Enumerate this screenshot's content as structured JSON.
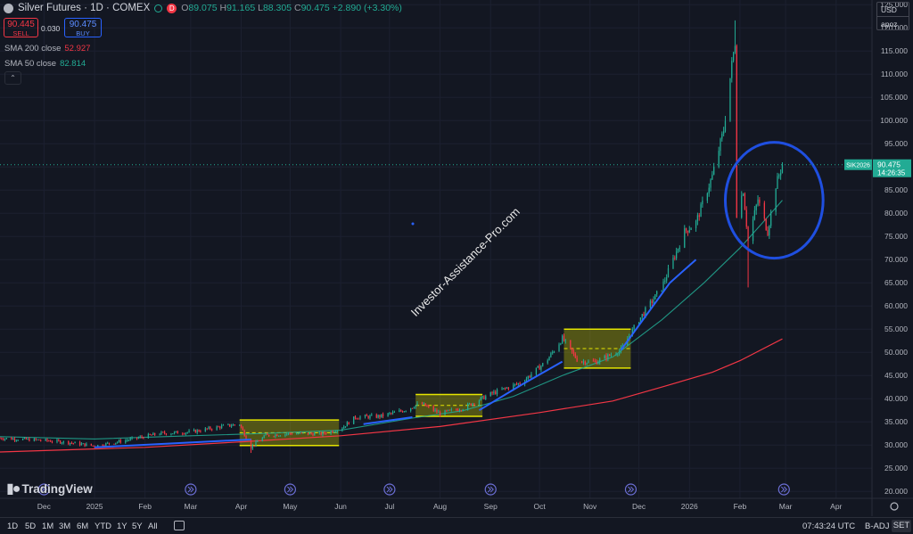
{
  "header": {
    "symbol": "Silver Futures · 1D · COMEX",
    "open_label": "O",
    "open": "89.075",
    "high_label": "H",
    "high": "91.165",
    "low_label": "L",
    "low": "88.305",
    "close_label": "C",
    "close": "90.475",
    "change": "+2.890 (+3.30%)",
    "d_badge": "D"
  },
  "trade": {
    "sell_price": "90.445",
    "sell_label": "SELL",
    "spread": "0.030",
    "buy_price": "90.475",
    "buy_label": "BUY"
  },
  "indicators": [
    {
      "label": "SMA 200 close",
      "value": "52.927",
      "color": "#f23645"
    },
    {
      "label": "SMA 50 close",
      "value": "82.814",
      "color": "#22ab94"
    }
  ],
  "currency": {
    "code": "USD",
    "unit": "apoz"
  },
  "price_label": {
    "ticker": "SIK2026",
    "price": "90.475",
    "countdown": "14:26:35"
  },
  "watermark": "Investor-Assistance-Pro.com",
  "brand": "TradingView",
  "bottom_bar": {
    "ranges": [
      "1D",
      "5D",
      "1M",
      "3M",
      "6M",
      "YTD",
      "1Y",
      "5Y",
      "All"
    ],
    "clock": "07:43:24 UTC",
    "badj": "B-ADJ",
    "session": "SET"
  },
  "colors": {
    "bull": "#22ab94",
    "bear": "#f23645",
    "sma200": "#f23645",
    "sma50": "#22ab94",
    "annotation": "#2962ff",
    "box": "#e5e500",
    "background": "#131722"
  },
  "chart_data": {
    "type": "candlestick",
    "instrument": "Silver Futures",
    "ylim": [
      18.5,
      126
    ],
    "y_ticks": [
      20,
      25,
      30,
      35,
      40,
      45,
      50,
      55,
      60,
      65,
      70,
      75,
      80,
      85,
      90,
      95,
      100,
      105,
      110,
      115,
      120,
      125
    ],
    "y_tick_labels": [
      "20.000",
      "25.000",
      "30.000",
      "35.000",
      "40.000",
      "45.000",
      "50.000",
      "55.000",
      "60.000",
      "65.000",
      "70.000",
      "75.000",
      "80.000",
      "85.000",
      "90.000",
      "95.000",
      "100.000",
      "105.000",
      "110.000",
      "115.000",
      "120.000",
      "125.000"
    ],
    "x_labels": [
      "Dec",
      "2025",
      "Feb",
      "Mar",
      "Apr",
      "May",
      "Jun",
      "Jul",
      "Aug",
      "Sep",
      "Oct",
      "Nov",
      "Dec",
      "2026",
      "Feb",
      "Mar",
      "Apr"
    ],
    "x_label_dates": [
      "2024-12-01",
      "2025-01-01",
      "2025-02-01",
      "2025-03-01",
      "2025-04-01",
      "2025-05-01",
      "2025-06-01",
      "2025-07-01",
      "2025-08-01",
      "2025-09-01",
      "2025-10-01",
      "2025-11-01",
      "2025-12-01",
      "2026-01-01",
      "2026-02-01",
      "2026-03-01",
      "2026-04-01"
    ],
    "x_range": [
      "2024-11-04",
      "2026-04-23"
    ],
    "price_path": [
      [
        "2024-11-04",
        31.5
      ],
      [
        "2024-12-01",
        31.0
      ],
      [
        "2024-12-15",
        30.6
      ],
      [
        "2025-01-01",
        29.8
      ],
      [
        "2025-01-20",
        31.0
      ],
      [
        "2025-02-10",
        32.5
      ],
      [
        "2025-03-01",
        32.8
      ],
      [
        "2025-03-20",
        34.0
      ],
      [
        "2025-03-31",
        34.5
      ],
      [
        "2025-04-07",
        29.5
      ],
      [
        "2025-04-15",
        32.0
      ],
      [
        "2025-05-01",
        32.5
      ],
      [
        "2025-05-20",
        32.4
      ],
      [
        "2025-06-01",
        33.5
      ],
      [
        "2025-06-10",
        36.0
      ],
      [
        "2025-06-25",
        36.2
      ],
      [
        "2025-07-10",
        37.5
      ],
      [
        "2025-07-20",
        39.0
      ],
      [
        "2025-08-01",
        36.8
      ],
      [
        "2025-08-15",
        38.0
      ],
      [
        "2025-09-01",
        41.0
      ],
      [
        "2025-09-20",
        43.5
      ],
      [
        "2025-10-05",
        48.0
      ],
      [
        "2025-10-15",
        53.0
      ],
      [
        "2025-10-25",
        48.0
      ],
      [
        "2025-11-05",
        48.0
      ],
      [
        "2025-11-20",
        50.5
      ],
      [
        "2025-12-01",
        57.0
      ],
      [
        "2025-12-15",
        64.0
      ],
      [
        "2025-12-29",
        76.0
      ],
      [
        "2026-01-05",
        78.0
      ],
      [
        "2026-01-15",
        88.0
      ],
      [
        "2026-01-22",
        98.0
      ],
      [
        "2026-01-27",
        112.0
      ],
      [
        "2026-01-29",
        117.0
      ],
      [
        "2026-01-30",
        80.0
      ],
      [
        "2026-02-03",
        85.0
      ],
      [
        "2026-02-06",
        74.0
      ],
      [
        "2026-02-12",
        83.0
      ],
      [
        "2026-02-18",
        76.0
      ],
      [
        "2026-02-23",
        86.0
      ],
      [
        "2026-02-27",
        90.475
      ]
    ],
    "extremes": [
      {
        "date": "2025-04-07",
        "low": 28.3
      },
      {
        "date": "2026-01-29",
        "high": 121.6
      },
      {
        "date": "2026-02-06",
        "low": 64.0
      }
    ],
    "last_price": 90.475,
    "sma200": [
      [
        "2024-11-04",
        28.5
      ],
      [
        "2025-02-01",
        29.5
      ],
      [
        "2025-04-01",
        30.7
      ],
      [
        "2025-06-01",
        32.0
      ],
      [
        "2025-08-01",
        34.0
      ],
      [
        "2025-10-01",
        37.0
      ],
      [
        "2025-11-15",
        39.5
      ],
      [
        "2025-12-15",
        42.5
      ],
      [
        "2026-01-15",
        45.7
      ],
      [
        "2026-02-01",
        48.2
      ],
      [
        "2026-02-27",
        52.9
      ]
    ],
    "sma50": [
      [
        "2024-11-04",
        31.8
      ],
      [
        "2025-01-01",
        31.3
      ],
      [
        "2025-03-01",
        32.0
      ],
      [
        "2025-04-15",
        32.5
      ],
      [
        "2025-06-01",
        33.2
      ],
      [
        "2025-07-15",
        35.8
      ],
      [
        "2025-08-15",
        37.4
      ],
      [
        "2025-09-15",
        40.5
      ],
      [
        "2025-10-15",
        45.0
      ],
      [
        "2025-11-15",
        49.0
      ],
      [
        "2025-12-15",
        57.0
      ],
      [
        "2026-01-10",
        65.0
      ],
      [
        "2026-02-01",
        72.5
      ],
      [
        "2026-02-15",
        78.0
      ],
      [
        "2026-02-27",
        82.8
      ]
    ],
    "annotations": {
      "trendlines": [
        [
          [
            "2025-01-01",
            29.5
          ],
          [
            "2025-04-07",
            31.2
          ]
        ],
        [
          [
            "2025-06-15",
            34.5
          ],
          [
            "2025-07-15",
            36.0
          ]
        ],
        [
          [
            "2025-08-25",
            37.5
          ],
          [
            "2025-09-20",
            43.0
          ]
        ],
        [
          [
            "2025-09-20",
            43.0
          ],
          [
            "2025-10-15",
            48.0
          ]
        ],
        [
          [
            "2025-11-20",
            50.5
          ],
          [
            "2025-12-20",
            65.0
          ]
        ],
        [
          [
            "2025-12-20",
            65.0
          ],
          [
            "2026-01-05",
            70.0
          ]
        ]
      ],
      "consolidation_boxes": [
        {
          "from": "2025-03-31",
          "to": "2025-05-31",
          "low": 29.9,
          "high": 35.4
        },
        {
          "from": "2025-07-17",
          "to": "2025-08-27",
          "low": 36.2,
          "high": 40.9
        },
        {
          "from": "2025-10-16",
          "to": "2025-11-26",
          "low": 46.6,
          "high": 55.0
        }
      ],
      "ellipse": {
        "from": "2026-01-23",
        "to": "2026-03-24",
        "low": 70.3,
        "high": 95.3
      }
    },
    "event_markers": [
      "2024-12-01",
      "2025-03-01",
      "2025-05-01",
      "2025-07-01",
      "2025-09-01",
      "2025-11-26",
      "2026-02-28"
    ]
  }
}
